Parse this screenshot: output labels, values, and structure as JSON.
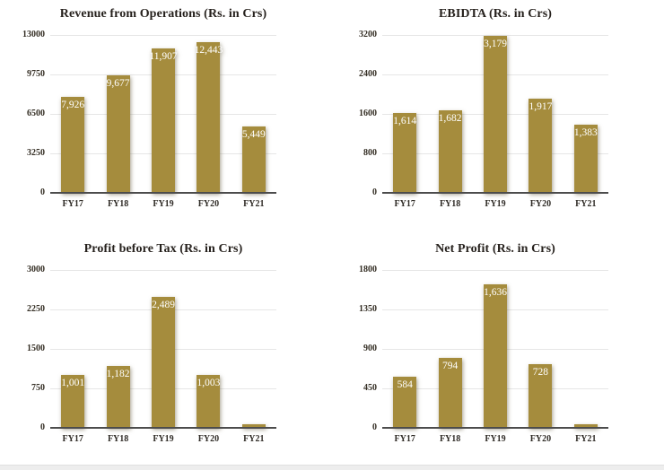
{
  "page": {
    "background": "#ffffff",
    "bottom_strip_color": "#ededed"
  },
  "colors": {
    "bar_fill": "#a58c3d",
    "bar_value_text": "#ffffff",
    "title_text": "#26211d",
    "axis_text": "#342e24",
    "gridline": "#e6e6e6",
    "axis_baseline": "#4c4c4c"
  },
  "chart_data": [
    {
      "type": "bar",
      "title": "Revenue from Operations (Rs. in Crs)",
      "categories": [
        "FY17",
        "FY18",
        "FY19",
        "FY20",
        "FY21"
      ],
      "values": [
        7926,
        9677,
        11907,
        12443,
        5449
      ],
      "bar_labels": [
        "7,926",
        "9,677",
        "11,907",
        "12,443",
        "5,449"
      ],
      "y_ticks": [
        13000,
        9750,
        6500,
        3250,
        0
      ],
      "ylim": [
        0,
        13000
      ],
      "xlabel": "",
      "ylabel": "",
      "grid": "horizontal",
      "legend": "none"
    },
    {
      "type": "bar",
      "title": "EBIDTA (Rs. in Crs)",
      "categories": [
        "FY17",
        "FY18",
        "FY19",
        "FY20",
        "FY21"
      ],
      "values": [
        1614,
        1682,
        3179,
        1917,
        1383
      ],
      "bar_labels": [
        "1,614",
        "1,682",
        "3,179",
        "1,917",
        "1,383"
      ],
      "y_ticks": [
        3200,
        2400,
        1600,
        800,
        0
      ],
      "ylim": [
        0,
        3200
      ],
      "xlabel": "",
      "ylabel": "",
      "grid": "horizontal",
      "legend": "none"
    },
    {
      "type": "bar",
      "title": "Profit before Tax (Rs. in Crs)",
      "categories": [
        "FY17",
        "FY18",
        "FY19",
        "FY20",
        "FY21"
      ],
      "values": [
        1001,
        1182,
        2489,
        1003,
        60
      ],
      "bar_labels": [
        "1,001",
        "1,182",
        "2,489",
        "1,003",
        ""
      ],
      "y_ticks": [
        3000,
        2250,
        1500,
        750,
        0
      ],
      "ylim": [
        0,
        3000
      ],
      "xlabel": "",
      "ylabel": "",
      "grid": "horizontal",
      "legend": "none"
    },
    {
      "type": "bar",
      "title": "Net Profit (Rs. in Crs)",
      "categories": [
        "FY17",
        "FY18",
        "FY19",
        "FY20",
        "FY21"
      ],
      "values": [
        584,
        794,
        1636,
        728,
        40
      ],
      "bar_labels": [
        "584",
        "794",
        "1,636",
        "728",
        ""
      ],
      "y_ticks": [
        1800,
        1350,
        900,
        450,
        0
      ],
      "ylim": [
        0,
        1800
      ],
      "xlabel": "",
      "ylabel": "",
      "grid": "horizontal",
      "legend": "none"
    }
  ]
}
